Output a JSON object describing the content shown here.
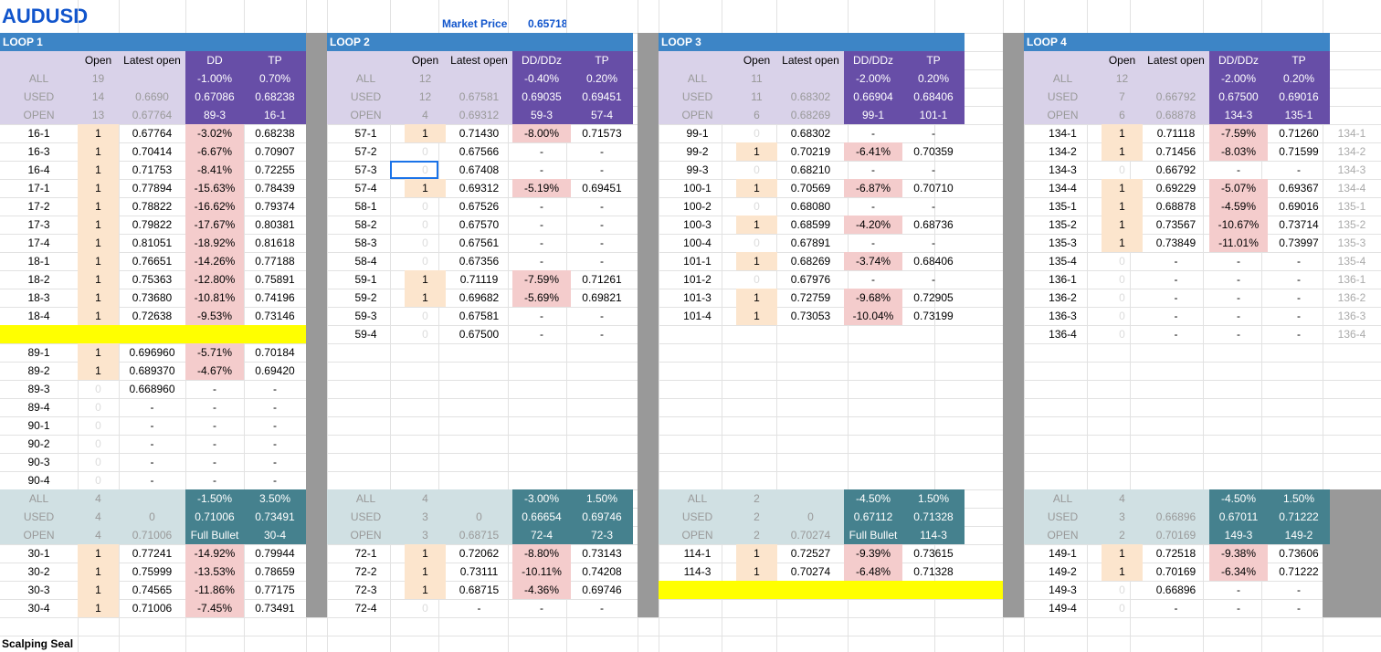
{
  "title": "AUDUSD",
  "market_price_label": "Market Price",
  "market_price_value": "0.65718",
  "footer_label": "Scalping Seal",
  "colors": {
    "loop_header": "#3d85c6",
    "summary_label_bg": "#d9d2e9",
    "summary_dark_bg": "#674ea7",
    "summary2_label_bg": "#d0e0e3",
    "summary2_dark_bg": "#45818e",
    "open_flag_bg": "#fce5cd",
    "dd_bg": "#f4cccc",
    "highlight_yellow": "#ffff00",
    "separator": "#999999",
    "title_blue": "#1155cc"
  },
  "columns": [
    "",
    "Open",
    "Latest open",
    "DD",
    "TP"
  ],
  "columns_alt": [
    "",
    "Open",
    "Latest open",
    "DD/DDz",
    "TP"
  ],
  "loops": [
    {
      "name": "LOOP 1",
      "summary1": [
        [
          "ALL",
          "19",
          "",
          "-1.00%",
          "0.70%"
        ],
        [
          "USED",
          "14",
          "0.6690",
          "0.67086",
          "0.68238"
        ],
        [
          "OPEN",
          "13",
          "0.67764",
          "89-3",
          "16-1"
        ]
      ],
      "rows1": [
        [
          "16-1",
          "1",
          "0.67764",
          "-3.02%",
          "0.68238"
        ],
        [
          "16-3",
          "1",
          "0.70414",
          "-6.67%",
          "0.70907"
        ],
        [
          "16-4",
          "1",
          "0.71753",
          "-8.41%",
          "0.72255"
        ],
        [
          "17-1",
          "1",
          "0.77894",
          "-15.63%",
          "0.78439"
        ],
        [
          "17-2",
          "1",
          "0.78822",
          "-16.62%",
          "0.79374"
        ],
        [
          "17-3",
          "1",
          "0.79822",
          "-17.67%",
          "0.80381"
        ],
        [
          "17-4",
          "1",
          "0.81051",
          "-18.92%",
          "0.81618"
        ],
        [
          "18-1",
          "1",
          "0.76651",
          "-14.26%",
          "0.77188"
        ],
        [
          "18-2",
          "1",
          "0.75363",
          "-12.80%",
          "0.75891"
        ],
        [
          "18-3",
          "1",
          "0.73680",
          "-10.81%",
          "0.74196"
        ],
        [
          "18-4",
          "1",
          "0.72638",
          "-9.53%",
          "0.73146"
        ],
        [
          "",
          "",
          "",
          "",
          ""
        ],
        [
          "89-1",
          "1",
          "0.696960",
          "-5.71%",
          "0.70184"
        ],
        [
          "89-2",
          "1",
          "0.689370",
          "-4.67%",
          "0.69420"
        ],
        [
          "89-3",
          "0",
          "0.668960",
          "-",
          "-"
        ],
        [
          "89-4",
          "0",
          "-",
          "-",
          "-"
        ],
        [
          "90-1",
          "0",
          "-",
          "-",
          "-"
        ],
        [
          "90-2",
          "0",
          "-",
          "-",
          "-"
        ],
        [
          "90-3",
          "0",
          "-",
          "-",
          "-"
        ],
        [
          "90-4",
          "0",
          "-",
          "-",
          "-"
        ]
      ],
      "summary2": [
        [
          "ALL",
          "4",
          "",
          "-1.50%",
          "3.50%"
        ],
        [
          "USED",
          "4",
          "0",
          "0.71006",
          "0.73491"
        ],
        [
          "OPEN",
          "4",
          "0.71006",
          "Full Bullet",
          "30-4"
        ]
      ],
      "rows2": [
        [
          "30-1",
          "1",
          "0.77241",
          "-14.92%",
          "0.79944"
        ],
        [
          "30-2",
          "1",
          "0.75999",
          "-13.53%",
          "0.78659"
        ],
        [
          "30-3",
          "1",
          "0.74565",
          "-11.86%",
          "0.77175"
        ],
        [
          "30-4",
          "1",
          "0.71006",
          "-7.45%",
          "0.73491"
        ]
      ]
    },
    {
      "name": "LOOP 2",
      "summary1": [
        [
          "ALL",
          "12",
          "",
          "-0.40%",
          "0.20%"
        ],
        [
          "USED",
          "12",
          "0.67581",
          "0.69035",
          "0.69451"
        ],
        [
          "OPEN",
          "4",
          "0.69312",
          "59-3",
          "57-4"
        ]
      ],
      "rows1": [
        [
          "57-1",
          "1",
          "0.71430",
          "-8.00%",
          "0.71573"
        ],
        [
          "57-2",
          "0",
          "0.67566",
          "-",
          "-"
        ],
        [
          "57-3",
          "0",
          "0.67408",
          "-",
          "-"
        ],
        [
          "57-4",
          "1",
          "0.69312",
          "-5.19%",
          "0.69451"
        ],
        [
          "58-1",
          "0",
          "0.67526",
          "-",
          "-"
        ],
        [
          "58-2",
          "0",
          "0.67570",
          "-",
          "-"
        ],
        [
          "58-3",
          "0",
          "0.67561",
          "-",
          "-"
        ],
        [
          "58-4",
          "0",
          "0.67356",
          "-",
          "-"
        ],
        [
          "59-1",
          "1",
          "0.71119",
          "-7.59%",
          "0.71261"
        ],
        [
          "59-2",
          "1",
          "0.69682",
          "-5.69%",
          "0.69821"
        ],
        [
          "59-3",
          "0",
          "0.67581",
          "-",
          "-"
        ],
        [
          "59-4",
          "0",
          "0.67500",
          "-",
          "-"
        ]
      ],
      "summary2": [
        [
          "ALL",
          "4",
          "",
          "-3.00%",
          "1.50%"
        ],
        [
          "USED",
          "3",
          "0",
          "0.66654",
          "0.69746"
        ],
        [
          "OPEN",
          "3",
          "0.68715",
          "72-4",
          "72-3"
        ]
      ],
      "rows2": [
        [
          "72-1",
          "1",
          "0.72062",
          "-8.80%",
          "0.73143"
        ],
        [
          "72-2",
          "1",
          "0.73111",
          "-10.11%",
          "0.74208"
        ],
        [
          "72-3",
          "1",
          "0.68715",
          "-4.36%",
          "0.69746"
        ],
        [
          "72-4",
          "0",
          "-",
          "-",
          "-"
        ]
      ]
    },
    {
      "name": "LOOP 3",
      "summary1": [
        [
          "ALL",
          "11",
          "",
          "-2.00%",
          "0.20%"
        ],
        [
          "USED",
          "11",
          "0.68302",
          "0.66904",
          "0.68406"
        ],
        [
          "OPEN",
          "6",
          "0.68269",
          "99-1",
          "101-1"
        ]
      ],
      "rows1": [
        [
          "99-1",
          "0",
          "0.68302",
          "-",
          "-"
        ],
        [
          "99-2",
          "1",
          "0.70219",
          "-6.41%",
          "0.70359"
        ],
        [
          "99-3",
          "0",
          "0.68210",
          "-",
          "-"
        ],
        [
          "100-1",
          "1",
          "0.70569",
          "-6.87%",
          "0.70710"
        ],
        [
          "100-2",
          "0",
          "0.68080",
          "-",
          "-"
        ],
        [
          "100-3",
          "1",
          "0.68599",
          "-4.20%",
          "0.68736"
        ],
        [
          "100-4",
          "0",
          "0.67891",
          "-",
          "-"
        ],
        [
          "101-1",
          "1",
          "0.68269",
          "-3.74%",
          "0.68406"
        ],
        [
          "101-2",
          "0",
          "0.67976",
          "-",
          "-"
        ],
        [
          "101-3",
          "1",
          "0.72759",
          "-9.68%",
          "0.72905"
        ],
        [
          "101-4",
          "1",
          "0.73053",
          "-10.04%",
          "0.73199"
        ]
      ],
      "summary2": [
        [
          "ALL",
          "2",
          "",
          "-4.50%",
          "1.50%"
        ],
        [
          "USED",
          "2",
          "0",
          "0.67112",
          "0.71328"
        ],
        [
          "OPEN",
          "2",
          "0.70274",
          "Full Bullet",
          "114-3"
        ]
      ],
      "rows2": [
        [
          "114-1",
          "1",
          "0.72527",
          "-9.39%",
          "0.73615"
        ],
        [
          "114-3",
          "1",
          "0.70274",
          "-6.48%",
          "0.71328"
        ]
      ]
    },
    {
      "name": "LOOP 4",
      "summary1": [
        [
          "ALL",
          "12",
          "",
          "-2.00%",
          "0.20%"
        ],
        [
          "USED",
          "7",
          "0.66792",
          "0.67500",
          "0.69016"
        ],
        [
          "OPEN",
          "6",
          "0.68878",
          "134-3",
          "135-1"
        ]
      ],
      "rows1": [
        [
          "134-1",
          "1",
          "0.71118",
          "-7.59%",
          "0.71260",
          "134-1"
        ],
        [
          "134-2",
          "1",
          "0.71456",
          "-8.03%",
          "0.71599",
          "134-2"
        ],
        [
          "134-3",
          "0",
          "0.66792",
          "-",
          "-",
          "134-3"
        ],
        [
          "134-4",
          "1",
          "0.69229",
          "-5.07%",
          "0.69367",
          "134-4"
        ],
        [
          "135-1",
          "1",
          "0.68878",
          "-4.59%",
          "0.69016",
          "135-1"
        ],
        [
          "135-2",
          "1",
          "0.73567",
          "-10.67%",
          "0.73714",
          "135-2"
        ],
        [
          "135-3",
          "1",
          "0.73849",
          "-11.01%",
          "0.73997",
          "135-3"
        ],
        [
          "135-4",
          "0",
          "-",
          "-",
          "-",
          "135-4"
        ],
        [
          "136-1",
          "0",
          "-",
          "-",
          "-",
          "136-1"
        ],
        [
          "136-2",
          "0",
          "-",
          "-",
          "-",
          "136-2"
        ],
        [
          "136-3",
          "0",
          "-",
          "-",
          "-",
          "136-3"
        ],
        [
          "136-4",
          "0",
          "-",
          "-",
          "-",
          "136-4"
        ]
      ],
      "summary2": [
        [
          "ALL",
          "4",
          "",
          "-4.50%",
          "1.50%"
        ],
        [
          "USED",
          "3",
          "0.66896",
          "0.67011",
          "0.71222"
        ],
        [
          "OPEN",
          "2",
          "0.70169",
          "149-3",
          "149-2"
        ]
      ],
      "rows2": [
        [
          "149-1",
          "1",
          "0.72518",
          "-9.38%",
          "0.73606"
        ],
        [
          "149-2",
          "1",
          "0.70169",
          "-6.34%",
          "0.71222"
        ],
        [
          "149-3",
          "0",
          "0.66896",
          "-",
          "-"
        ],
        [
          "149-4",
          "0",
          "-",
          "-",
          "-"
        ]
      ]
    }
  ]
}
